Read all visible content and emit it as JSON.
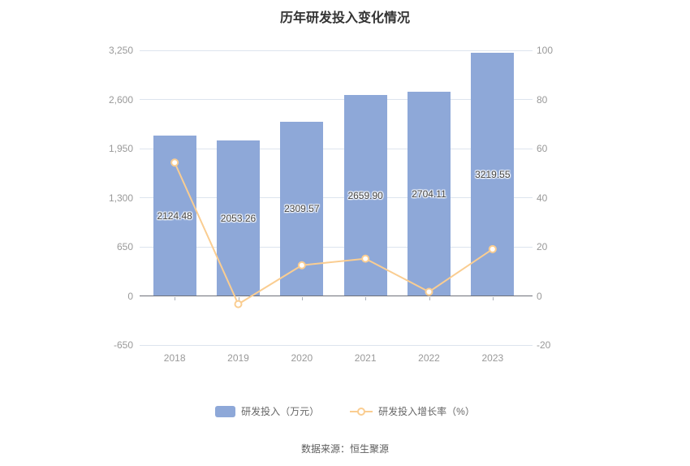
{
  "title": "历年研发投入变化情况",
  "source": "数据来源：恒生聚源",
  "legend": {
    "bar_label": "研发投入（万元）",
    "line_label": "研发投入增长率（%）"
  },
  "colors": {
    "bar": "#8EA8D8",
    "line": "#FACD91",
    "marker_fill": "#ffffff",
    "grid": "#dde4ee",
    "axis_line": "#6E7079",
    "axis_label": "#999999",
    "bar_value_label": "#444444",
    "title": "#333333",
    "legend_text": "#666666"
  },
  "chart_data": {
    "type": "bar",
    "title": "历年研发投入变化情况",
    "categories": [
      "2018",
      "2019",
      "2020",
      "2021",
      "2022",
      "2023"
    ],
    "series": [
      {
        "name": "研发投入（万元）",
        "type": "bar",
        "axis": "left",
        "values": [
          2124.48,
          2053.26,
          2309.57,
          2659.9,
          2704.11,
          3219.55
        ],
        "value_labels": [
          "2124.48",
          "2053.26",
          "2309.57",
          "2659.90",
          "2704.11",
          "3219.55"
        ]
      },
      {
        "name": "研发投入增长率（%）",
        "type": "line",
        "axis": "right",
        "values": [
          54.3,
          -3.35,
          12.48,
          15.17,
          1.66,
          19.06
        ]
      }
    ],
    "left_axis": {
      "min": -650,
      "max": 3250,
      "ticks": [
        3250,
        2600,
        1950,
        1300,
        650,
        0,
        -650
      ],
      "tick_labels": [
        "3,250",
        "2,600",
        "1,950",
        "1,300",
        "650",
        "0",
        "-650"
      ]
    },
    "right_axis": {
      "min": -20,
      "max": 100,
      "ticks": [
        100,
        80,
        60,
        40,
        20,
        0,
        -20
      ],
      "tick_labels": [
        "100",
        "80",
        "60",
        "40",
        "20",
        "0",
        "-20"
      ]
    },
    "grid": true,
    "legend_position": "bottom",
    "xlabel": "",
    "ylabel": ""
  }
}
